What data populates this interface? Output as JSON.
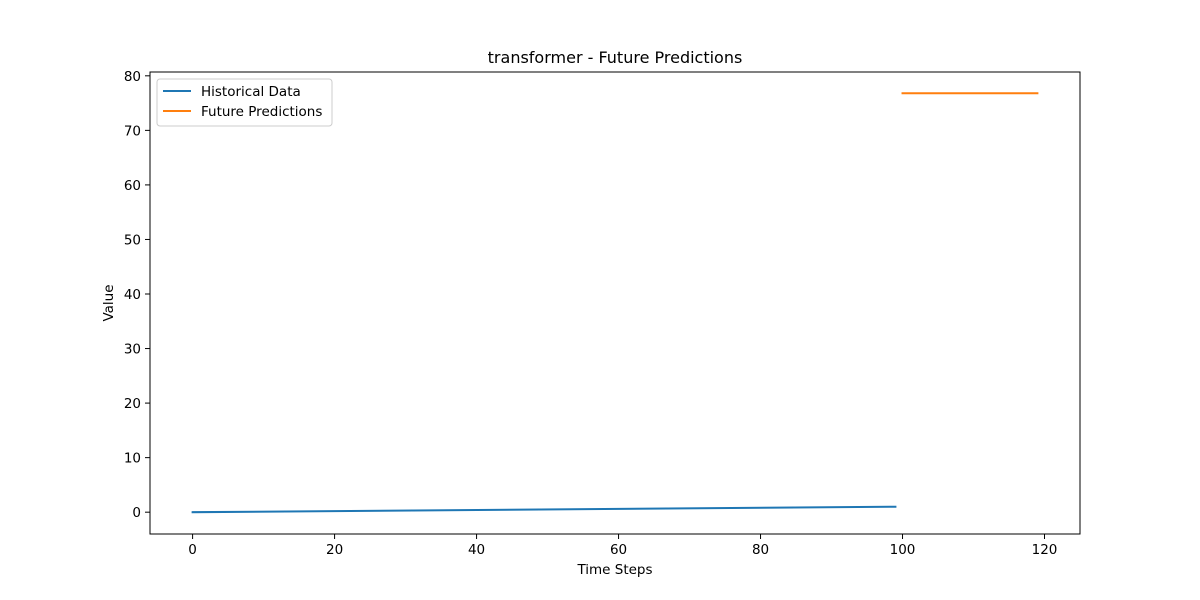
{
  "chart_data": {
    "type": "line",
    "title": "transformer - Future Predictions",
    "xlabel": "Time Steps",
    "ylabel": "Value",
    "xlim": [
      -6.0,
      125.0
    ],
    "ylim": [
      -4.0,
      80.7
    ],
    "xticks": [
      0,
      20,
      40,
      60,
      80,
      100,
      120
    ],
    "yticks": [
      0,
      10,
      20,
      30,
      40,
      50,
      60,
      70,
      80
    ],
    "grid": false,
    "legend_position": "top-left",
    "series": [
      {
        "name": "Historical Data",
        "color": "#1f77b4",
        "x": [
          0,
          99
        ],
        "y": [
          0.0,
          1.0
        ]
      },
      {
        "name": "Future Predictions",
        "color": "#ff7f0e",
        "x": [
          100,
          119
        ],
        "y": [
          76.8,
          76.8
        ]
      }
    ]
  }
}
